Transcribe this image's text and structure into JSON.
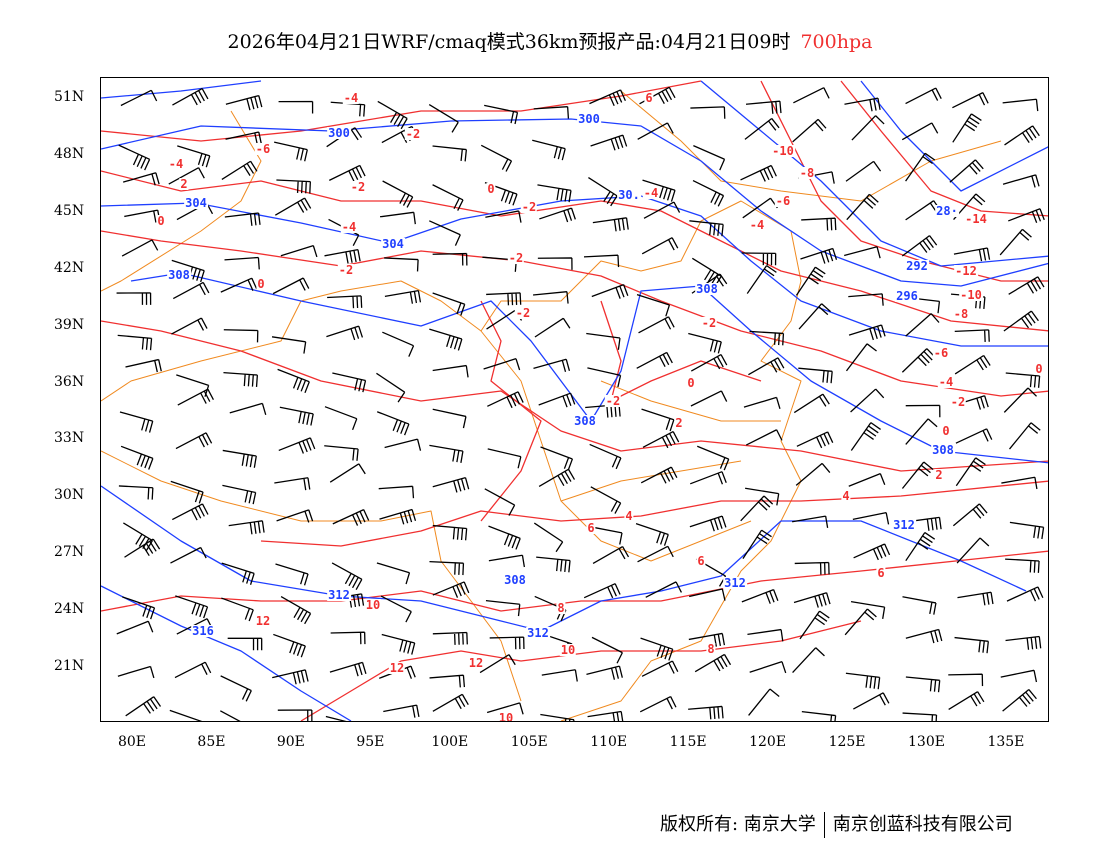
{
  "title": {
    "text": "2026年04月21日WRF/cmaq模式36km预报产品:04月21日09时",
    "level": "700hpa"
  },
  "axes": {
    "lat": [
      "51N",
      "48N",
      "45N",
      "42N",
      "39N",
      "36N",
      "33N",
      "30N",
      "27N",
      "24N",
      "21N"
    ],
    "lon": [
      "80E",
      "85E",
      "90E",
      "95E",
      "100E",
      "105E",
      "110E",
      "115E",
      "120E",
      "125E",
      "130E",
      "135E"
    ]
  },
  "height_labels": [
    "300",
    "300",
    "304",
    "304",
    "30.",
    "308",
    "308",
    "308",
    "308",
    "312",
    "312",
    "312",
    "312",
    "308",
    "316",
    "292",
    "296",
    "28·"
  ],
  "temp_labels": [
    "-4",
    "-2",
    "-6",
    "-4",
    "2",
    "-2",
    "0",
    "-2",
    "-4",
    "0",
    "-2",
    "-2",
    "0",
    "-2",
    "-2",
    "0",
    "-2",
    "2",
    "4",
    "4",
    "6",
    "6",
    "6",
    "8",
    "10",
    "12",
    "12",
    "12",
    "10",
    "8",
    "10",
    "-10",
    "-8",
    "-6",
    "-4",
    "-4",
    "-14",
    "-12",
    "-10",
    "-8",
    "-6",
    "-4",
    "-2",
    "0",
    "2",
    "0",
    "6"
  ],
  "colors": {
    "height": "#1f3fff",
    "temperature": "#f03030",
    "border": "#f08a20",
    "barb": "#000000"
  },
  "footer": {
    "copyright": "版权所有: 南京大学",
    "company": "南京创蓝科技有限公司"
  }
}
